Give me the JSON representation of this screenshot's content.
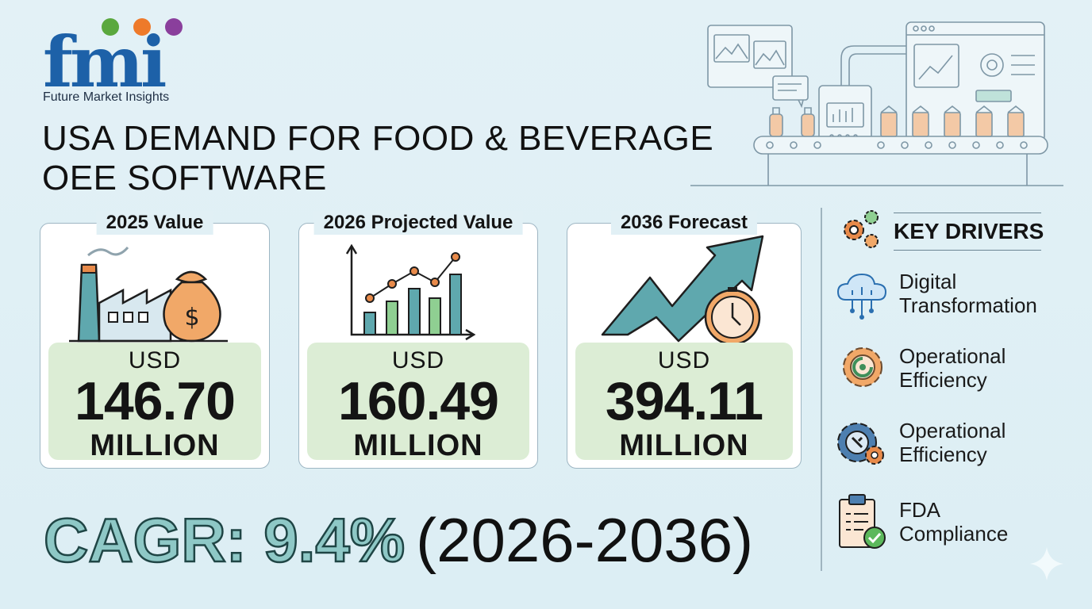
{
  "brand": {
    "logo_text": "fmi",
    "name": "Future Market Insights",
    "dot_colors": [
      "#5aa83e",
      "#ee7a2a",
      "#8a3f9c"
    ]
  },
  "title": {
    "line1": "USA DEMAND FOR FOOD & BEVERAGE",
    "line2": "OEE SOFTWARE"
  },
  "cards": [
    {
      "label": "2025 Value",
      "currency": "USD",
      "value": "146.70",
      "unit": "MILLION",
      "icon": "factory-money-bag-icon"
    },
    {
      "label": "2026 Projected Value",
      "currency": "USD",
      "value": "160.49",
      "unit": "MILLION",
      "icon": "bar-line-chart-icon"
    },
    {
      "label": "2036 Forecast",
      "currency": "USD",
      "value": "394.11",
      "unit": "MILLION",
      "icon": "growth-arrow-clock-icon"
    }
  ],
  "cagr": {
    "label": "CAGR: 9.4%",
    "period": "(2026-2036)"
  },
  "key_drivers": {
    "title": "KEY DRIVERS",
    "items": [
      {
        "line1": "Digital",
        "line2": "Transformation",
        "icon": "cloud-network-icon"
      },
      {
        "line1": "Operational",
        "line2": "Efficiency",
        "icon": "gear-efficiency-icon"
      },
      {
        "line1": "Operational",
        "line2": "Efficiency",
        "icon": "gear-wrench-icon"
      },
      {
        "line1": "FDA",
        "line2": "Compliance",
        "icon": "clipboard-check-icon"
      }
    ]
  },
  "colors": {
    "background": "#e1f0f5",
    "brand_blue": "#1d61a8",
    "value_box": "#dcedd5",
    "teal": "#5fa8ae",
    "cagr_fill": "#8ec8c6"
  }
}
